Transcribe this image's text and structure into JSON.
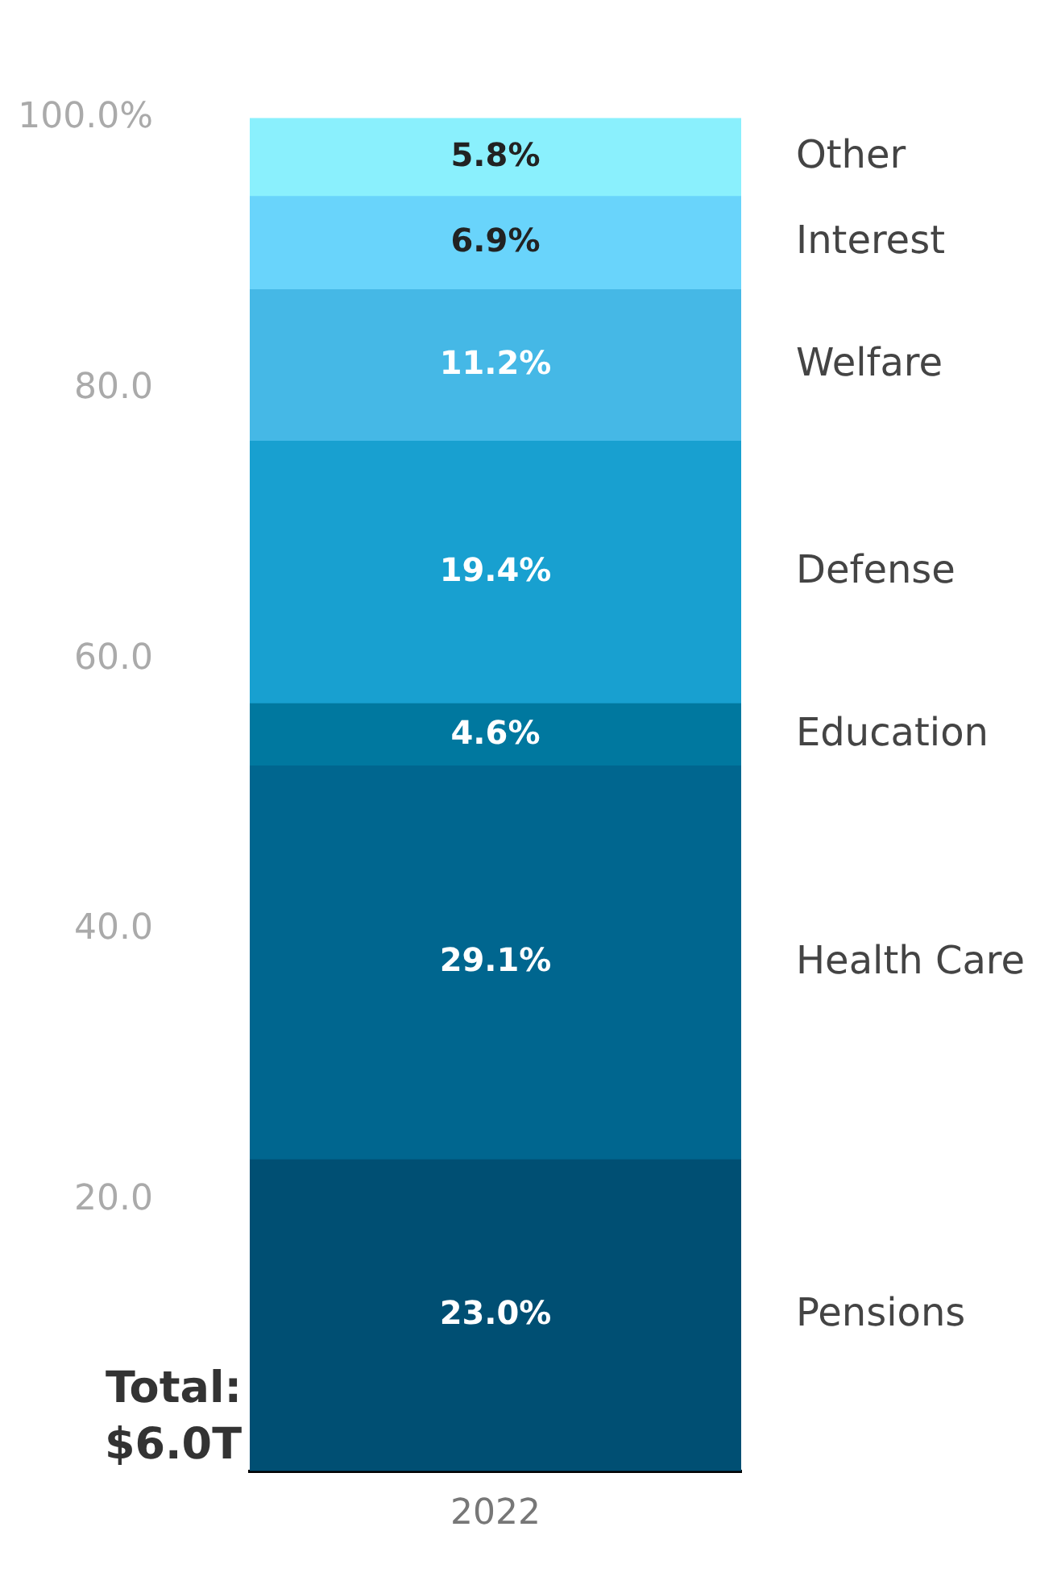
{
  "chart_data": {
    "type": "bar",
    "stacked": true,
    "categories": [
      "2022"
    ],
    "ylim": [
      0,
      100
    ],
    "yticks": [
      {
        "value": 20,
        "label": "20.0"
      },
      {
        "value": 40,
        "label": "40.0"
      },
      {
        "value": 60,
        "label": "60.0"
      },
      {
        "value": 80,
        "label": "80.0"
      },
      {
        "value": 100,
        "label": "100.0%"
      }
    ],
    "grid": false,
    "series": [
      {
        "name": "Pensions",
        "color": "#004f73",
        "values": [
          23.0
        ],
        "value_labels": [
          "23.0%"
        ]
      },
      {
        "name": "Health Care",
        "color": "#00668f",
        "values": [
          29.1
        ],
        "value_labels": [
          "29.1%"
        ]
      },
      {
        "name": "Education",
        "color": "#00789f",
        "values": [
          4.6
        ],
        "value_labels": [
          "4.6%"
        ]
      },
      {
        "name": "Defense",
        "color": "#18a0d0",
        "values": [
          19.4
        ],
        "value_labels": [
          "19.4%"
        ]
      },
      {
        "name": "Welfare",
        "color": "#45b8e6",
        "values": [
          11.2
        ],
        "value_labels": [
          "11.2%"
        ]
      },
      {
        "name": "Interest",
        "color": "#69d4fb",
        "values": [
          6.9
        ],
        "value_labels": [
          "6.9%"
        ]
      },
      {
        "name": "Other",
        "color": "#8af0fd",
        "values": [
          5.8
        ],
        "value_labels": [
          "5.8%"
        ]
      }
    ],
    "annotations": [
      "Total: $6.0T"
    ]
  }
}
